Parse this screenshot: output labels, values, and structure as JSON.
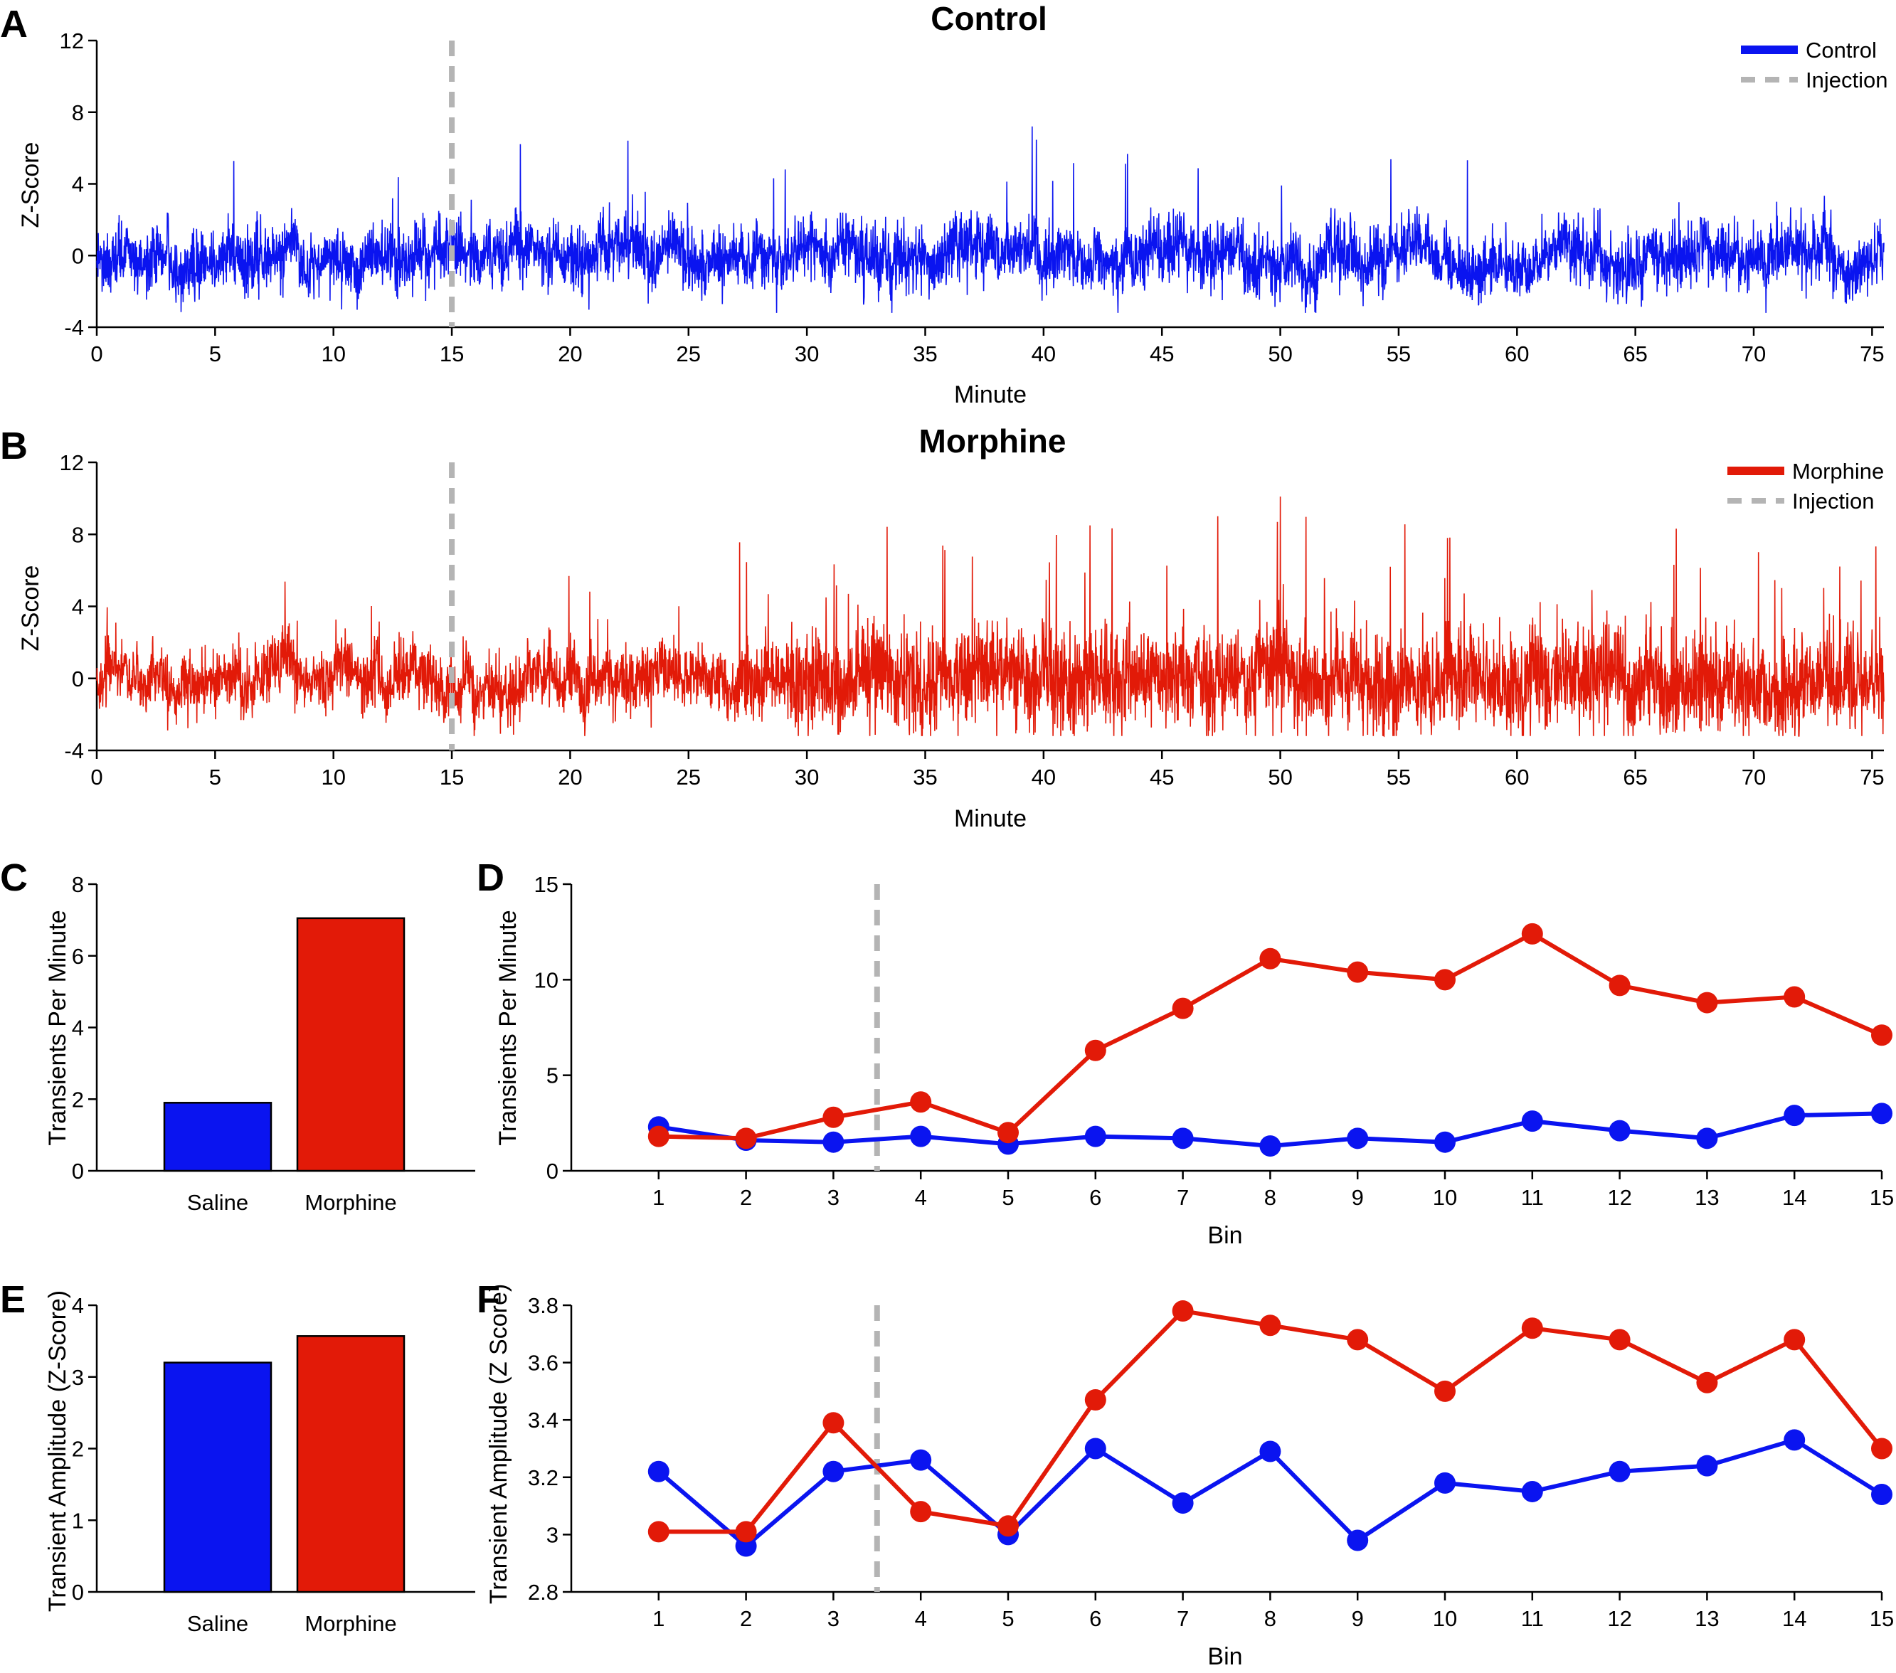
{
  "colors": {
    "control": "#0a14f0",
    "morphine": "#e21a08",
    "injection": "#b4b4b4"
  },
  "panels": {
    "A": {
      "label": "A",
      "title": "Control",
      "ylabel": "Z-Score",
      "xlabel": "Minute",
      "legend": [
        "Control",
        "Injection"
      ]
    },
    "B": {
      "label": "B",
      "title": "Morphine",
      "ylabel": "Z-Score",
      "xlabel": "Minute",
      "legend": [
        "Morphine",
        "Injection"
      ]
    },
    "C": {
      "label": "C",
      "ylabel": "Transients Per Minute"
    },
    "D": {
      "label": "D",
      "ylabel": "Transients Per Minute",
      "xlabel": "Bin"
    },
    "E": {
      "label": "E",
      "ylabel": "Transient Amplitude (Z-Score)"
    },
    "F": {
      "label": "F",
      "ylabel": "Transient Amplitude (Z Score)",
      "xlabel": "Bin"
    }
  },
  "chart_data": [
    {
      "id": "A",
      "type": "line",
      "title": "Control",
      "xlabel": "Minute",
      "ylabel": "Z-Score",
      "xlim": [
        0,
        75.5
      ],
      "ylim": [
        -4,
        12
      ],
      "xticks": [
        0,
        5,
        10,
        15,
        20,
        25,
        30,
        35,
        40,
        45,
        50,
        55,
        60,
        65,
        70,
        75
      ],
      "yticks": [
        -4,
        0,
        4,
        8,
        12
      ],
      "series": [
        {
          "name": "Control",
          "description": "continuous z-scored fluorescence trace, baseline ~0, noise approx -2 to +2, peaks up to ~7"
        }
      ],
      "injection_x": 15,
      "legend": [
        "Control",
        "Injection"
      ]
    },
    {
      "id": "B",
      "type": "line",
      "title": "Morphine",
      "xlabel": "Minute",
      "ylabel": "Z-Score",
      "xlim": [
        0,
        75.5
      ],
      "ylim": [
        -4,
        12
      ],
      "xticks": [
        0,
        5,
        10,
        15,
        20,
        25,
        30,
        35,
        40,
        45,
        50,
        55,
        60,
        65,
        70,
        75
      ],
      "yticks": [
        -4,
        0,
        4,
        8,
        12
      ],
      "series": [
        {
          "name": "Morphine",
          "description": "continuous z-scored fluorescence trace, activity increases after ~27 min, peaks up to ~10"
        }
      ],
      "injection_x": 15,
      "legend": [
        "Morphine",
        "Injection"
      ]
    },
    {
      "id": "C",
      "type": "bar",
      "ylabel": "Transients Per Minute",
      "categories": [
        "Saline",
        "Morphine"
      ],
      "values": [
        1.9,
        7.05
      ],
      "ylim": [
        0,
        8
      ],
      "yticks": [
        0,
        2,
        4,
        6,
        8
      ]
    },
    {
      "id": "D",
      "type": "line",
      "xlabel": "Bin",
      "ylabel": "Transients Per Minute",
      "x": [
        1,
        2,
        3,
        4,
        5,
        6,
        7,
        8,
        9,
        10,
        11,
        12,
        13,
        14,
        15
      ],
      "xlim": [
        0,
        15
      ],
      "ylim": [
        0,
        15
      ],
      "yticks": [
        0,
        5,
        10,
        15
      ],
      "injection_x": 3.5,
      "series": [
        {
          "name": "Saline",
          "values": [
            2.3,
            1.6,
            1.5,
            1.8,
            1.4,
            1.8,
            1.7,
            1.3,
            1.7,
            1.5,
            2.6,
            2.1,
            1.7,
            2.9,
            3.0
          ]
        },
        {
          "name": "Morphine",
          "values": [
            1.8,
            1.7,
            2.8,
            3.6,
            2.0,
            6.3,
            8.5,
            11.1,
            10.4,
            10.0,
            12.4,
            9.7,
            8.8,
            9.1,
            7.1
          ]
        }
      ]
    },
    {
      "id": "E",
      "type": "bar",
      "ylabel": "Transient Amplitude (Z-Score)",
      "categories": [
        "Saline",
        "Morphine"
      ],
      "values": [
        3.2,
        3.57
      ],
      "ylim": [
        0,
        4
      ],
      "yticks": [
        0,
        1,
        2,
        3,
        4
      ]
    },
    {
      "id": "F",
      "type": "line",
      "xlabel": "Bin",
      "ylabel": "Transient Amplitude (Z Score)",
      "x": [
        1,
        2,
        3,
        4,
        5,
        6,
        7,
        8,
        9,
        10,
        11,
        12,
        13,
        14,
        15
      ],
      "xlim": [
        0,
        15
      ],
      "ylim": [
        2.8,
        3.8
      ],
      "yticks": [
        2.8,
        3.0,
        3.2,
        3.4,
        3.6,
        3.8
      ],
      "ytick_labels": [
        "2.8",
        "3",
        "3.2",
        "3.4",
        "3.6",
        "3.8"
      ],
      "injection_x": 3.5,
      "series": [
        {
          "name": "Saline",
          "values": [
            3.22,
            2.96,
            3.22,
            3.26,
            3.0,
            3.3,
            3.11,
            3.29,
            2.98,
            3.18,
            3.15,
            3.22,
            3.24,
            3.33,
            3.14
          ]
        },
        {
          "name": "Morphine",
          "values": [
            3.01,
            3.01,
            3.39,
            3.08,
            3.03,
            3.47,
            3.78,
            3.73,
            3.68,
            3.5,
            3.72,
            3.68,
            3.53,
            3.68,
            3.3
          ]
        }
      ]
    }
  ]
}
